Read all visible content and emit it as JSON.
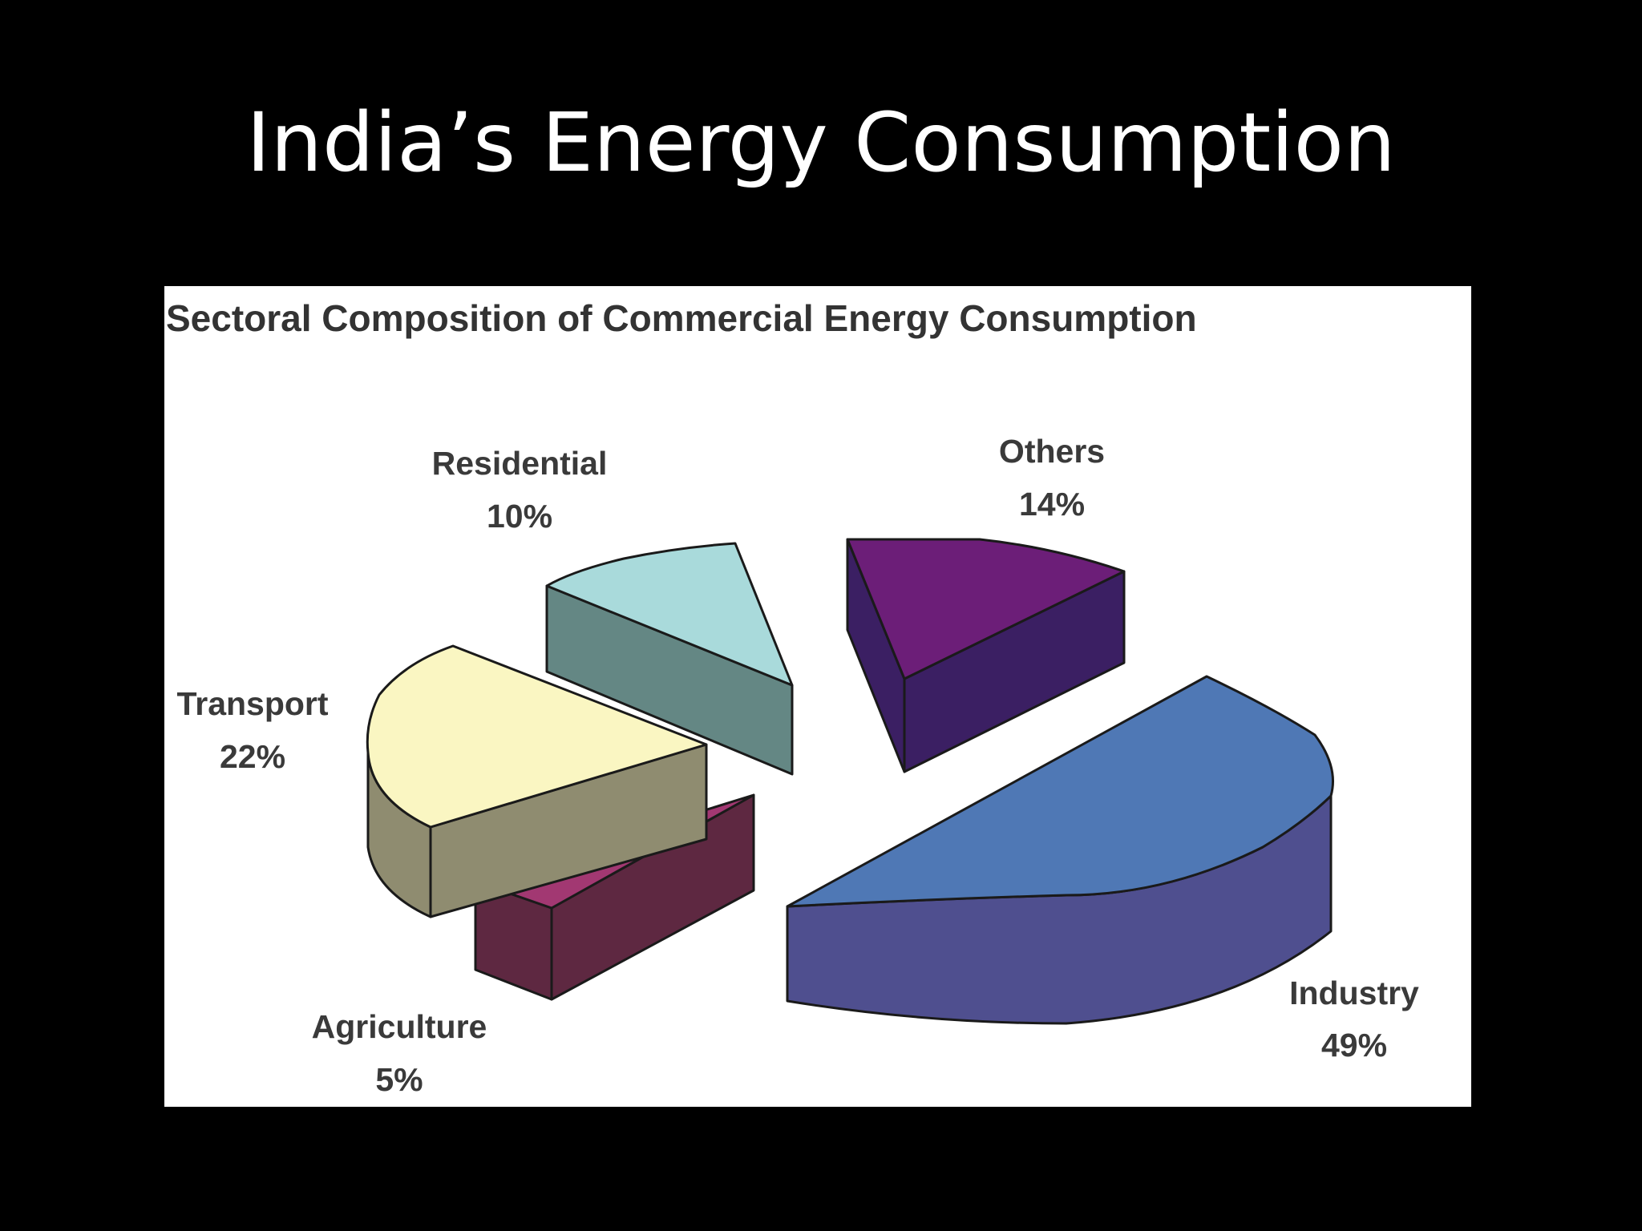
{
  "slide": {
    "title": "India’s Energy Consumption"
  },
  "chart_data": {
    "type": "pie",
    "title": "Sectoral Composition of Commercial Energy Consumption",
    "exploded": true,
    "three_d": true,
    "slices": [
      {
        "category": "Industry",
        "value": 49,
        "label": "49%",
        "color": "#4f78b5",
        "side_color": "#4f4f8f"
      },
      {
        "category": "Agriculture",
        "value": 5,
        "label": "5%",
        "color": "#a23872",
        "side_color": "#5e2841"
      },
      {
        "category": "Transport",
        "value": 22,
        "label": "22%",
        "color": "#faf6c2",
        "side_color": "#8f8c70"
      },
      {
        "category": "Residential",
        "value": 10,
        "label": "10%",
        "color": "#a9dadb",
        "side_color": "#648784"
      },
      {
        "category": "Others",
        "value": 14,
        "label": "14%",
        "color": "#6c1e78",
        "side_color": "#3b1f63"
      }
    ]
  }
}
